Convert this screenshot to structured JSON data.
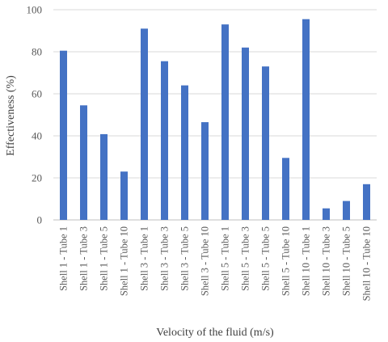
{
  "chart_data": {
    "type": "bar",
    "xlabel": "Velocity of the fluid (m/s)",
    "ylabel": "Effectiveness (%)",
    "ylim": [
      0,
      100
    ],
    "yticks": [
      0,
      20,
      40,
      60,
      80,
      100
    ],
    "grid": "horizontal",
    "legend": "none",
    "bar_color": "#4472c4",
    "categories": [
      "Shell 1 - Tube 1",
      "Shell 1 - Tube 3",
      "Shell 1 - Tube 5",
      "Shell 1 - Tube 10",
      "Shell 3 - Tube 1",
      "Shell 3 - Tube 3",
      "Shell 3 - Tube 5",
      "Shell 3 - Tube 10",
      "Shell 5 - Tube 1",
      "Shell 5 - Tube 3",
      "Shell 5 - Tube 5",
      "Shell 5 - Tube 10",
      "Shell 10 - Tube 1",
      "Shell 10 - Tube 3",
      "Shell 10 - Tube 5",
      "Shell 10 - Tube 10"
    ],
    "values": [
      80.5,
      54.5,
      40.8,
      23,
      91,
      75.5,
      64,
      46.5,
      93,
      82,
      73,
      29.5,
      95.5,
      5.5,
      9,
      17
    ]
  }
}
